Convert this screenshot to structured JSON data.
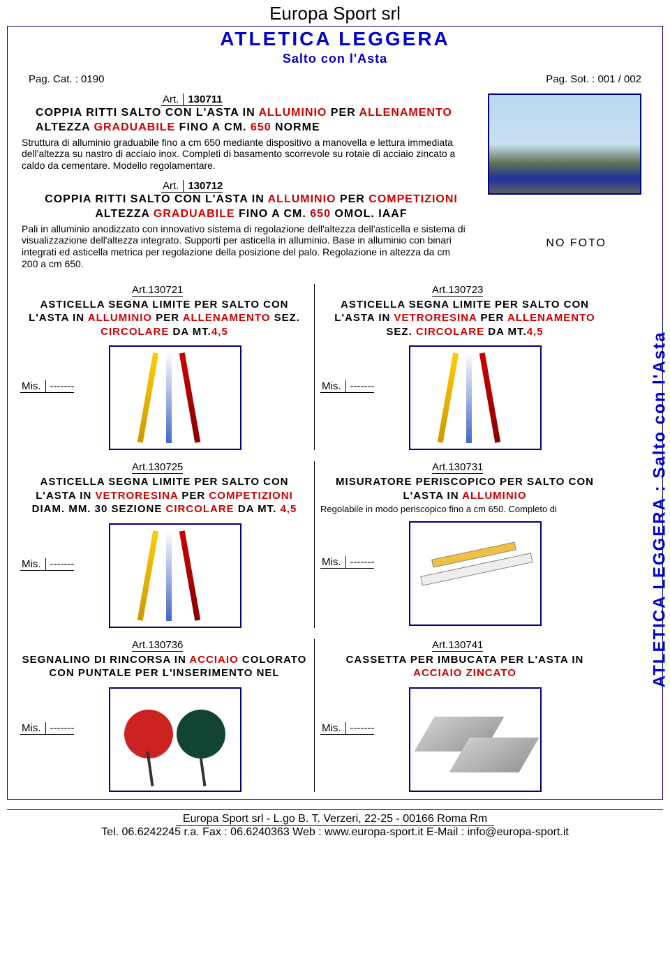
{
  "header": {
    "company": "Europa Sport srl",
    "category": "ATLETICA  LEGGERA",
    "subcategory": "Salto  con  l'Asta",
    "page_cat": "Pag. Cat. : 0190",
    "page_sot": "Pag. Sot. : 001 / 002"
  },
  "side_label": "ATLETICA  LEGGERA : Salto  con  l'Asta",
  "colors": {
    "accent": "#0000cc",
    "highlight": "#cc0000",
    "border": "#000080"
  },
  "articles_full": [
    {
      "art_label": "Art.",
      "code": "130711",
      "title_parts": [
        {
          "t": "COPPIA RITTI SALTO CON L'ASTA IN ",
          "c": "blk"
        },
        {
          "t": "ALLUMINIO",
          "c": "red"
        },
        {
          "t": " PER ",
          "c": "blk"
        },
        {
          "t": "ALLENAMENTO",
          "c": "red"
        },
        {
          "t": " ALTEZZA ",
          "c": "blk"
        },
        {
          "t": "GRADUABILE",
          "c": "red"
        },
        {
          "t": " FINO A CM.",
          "c": "blk"
        },
        {
          "t": " 650",
          "c": "red"
        },
        {
          "t": "   NORME",
          "c": "blk"
        }
      ],
      "desc": "Struttura di alluminio graduabile fino a cm 650 mediante dispositivo a manovella e lettura immediata dell'altezza su nastro di acciaio inox. Completi di basamento scorrevole su rotaie di acciaio zincato a caldo da cementare. Modello regolamentare.",
      "has_photo": true
    },
    {
      "art_label": "Art.",
      "code": "130712",
      "title_parts": [
        {
          "t": "COPPIA RITTI SALTO CON L'ASTA IN ",
          "c": "blk"
        },
        {
          "t": "ALLUMINIO",
          "c": "red"
        },
        {
          "t": " PER ",
          "c": "blk"
        },
        {
          "t": "COMPETIZIONI",
          "c": "red"
        },
        {
          "t": " ALTEZZA ",
          "c": "blk"
        },
        {
          "t": "GRADUABILE",
          "c": "red"
        },
        {
          "t": " FINO A CM.",
          "c": "blk"
        },
        {
          "t": " 650",
          "c": "red"
        },
        {
          "t": " OMOL. IAAF",
          "c": "blk"
        }
      ],
      "desc": "Pali in alluminio anodizzato con innovativo sistema di regolazione dell'altezza dell'asticella e sistema di visualizzazione dell'altezza integrato. Supporti per asticella in alluminio. Base in alluminio con binari integrati ed asticella metrica per regolazione della posizione del palo. Regolazione in altezza da cm 200 a cm 650.",
      "no_foto": "NO  FOTO"
    }
  ],
  "grid": [
    [
      {
        "art": "Art.130721",
        "title_parts": [
          {
            "t": "ASTICELLA SEGNA LIMITE PER SALTO CON L'ASTA IN ",
            "c": "blk"
          },
          {
            "t": "ALLUMINIO",
            "c": "red"
          },
          {
            "t": " PER ",
            "c": "blk"
          },
          {
            "t": "ALLENAMENTO",
            "c": "red"
          },
          {
            "t": " SEZ. ",
            "c": "blk"
          },
          {
            "t": "CIRCOLARE",
            "c": "red"
          },
          {
            "t": "  DA  MT.",
            "c": "blk"
          },
          {
            "t": "4,5",
            "c": "red"
          }
        ],
        "mis_label": "Mis.",
        "mis_value": "-------",
        "thumb": "bars"
      },
      {
        "art": "Art.130723",
        "title_parts": [
          {
            "t": "ASTICELLA SEGNA LIMITE PER SALTO CON L'ASTA IN ",
            "c": "blk"
          },
          {
            "t": "VETRORESINA",
            "c": "red"
          },
          {
            "t": " PER ",
            "c": "blk"
          },
          {
            "t": "ALLENAMENTO",
            "c": "red"
          },
          {
            "t": " SEZ. ",
            "c": "blk"
          },
          {
            "t": "CIRCOLARE",
            "c": "red"
          },
          {
            "t": "  DA  MT.",
            "c": "blk"
          },
          {
            "t": "4,5",
            "c": "red"
          }
        ],
        "mis_label": "Mis.",
        "mis_value": "-------",
        "thumb": "bars"
      }
    ],
    [
      {
        "art": "Art.130725",
        "title_parts": [
          {
            "t": "ASTICELLA SEGNA LIMITE PER SALTO CON L'ASTA IN ",
            "c": "blk"
          },
          {
            "t": "VETRORESINA",
            "c": "red"
          },
          {
            "t": " PER ",
            "c": "blk"
          },
          {
            "t": "COMPETIZIONI",
            "c": "red"
          },
          {
            "t": " DIAM. MM. 30 SEZIONE ",
            "c": "blk"
          },
          {
            "t": "CIRCOLARE",
            "c": "red"
          },
          {
            "t": " DA MT. ",
            "c": "blk"
          },
          {
            "t": "4,5",
            "c": "red"
          }
        ],
        "mis_label": "Mis.",
        "mis_value": "-------",
        "thumb": "bars"
      },
      {
        "art": "Art.130731",
        "title_parts": [
          {
            "t": "MISURATORE PERISCOPICO PER SALTO CON L'ASTA IN ",
            "c": "blk"
          },
          {
            "t": "ALLUMINIO",
            "c": "red"
          }
        ],
        "desc": "Regolabile in modo periscopico fino a cm 650. Completo di",
        "mis_label": "Mis.",
        "mis_value": "-------",
        "thumb": "ruler"
      }
    ],
    [
      {
        "art": "Art.130736",
        "title_parts": [
          {
            "t": "SEGNALINO DI RINCORSA IN ",
            "c": "blk"
          },
          {
            "t": "ACCIAIO",
            "c": "red"
          },
          {
            "t": " COLORATO CON PUNTALE PER L'INSERIMENTO NEL",
            "c": "blk"
          }
        ],
        "mis_label": "Mis.",
        "mis_value": "-------",
        "thumb": "paddle"
      },
      {
        "art": "Art.130741",
        "title_parts": [
          {
            "t": "CASSETTA PER IMBUCATA PER L'ASTA IN ",
            "c": "blk"
          },
          {
            "t": "ACCIAIO ZINCATO",
            "c": "red"
          }
        ],
        "mis_label": "Mis.",
        "mis_value": "-------",
        "thumb": "wedge"
      }
    ]
  ],
  "footer": {
    "line1": "Europa Sport srl  - L.go B. T. Verzeri, 22-25  -  00166  Roma  Rm",
    "line2": "Tel. 06.6242245 r.a.  Fax : 06.6240363  Web : www.europa-sport.it   E-Mail : info@europa-sport.it"
  }
}
